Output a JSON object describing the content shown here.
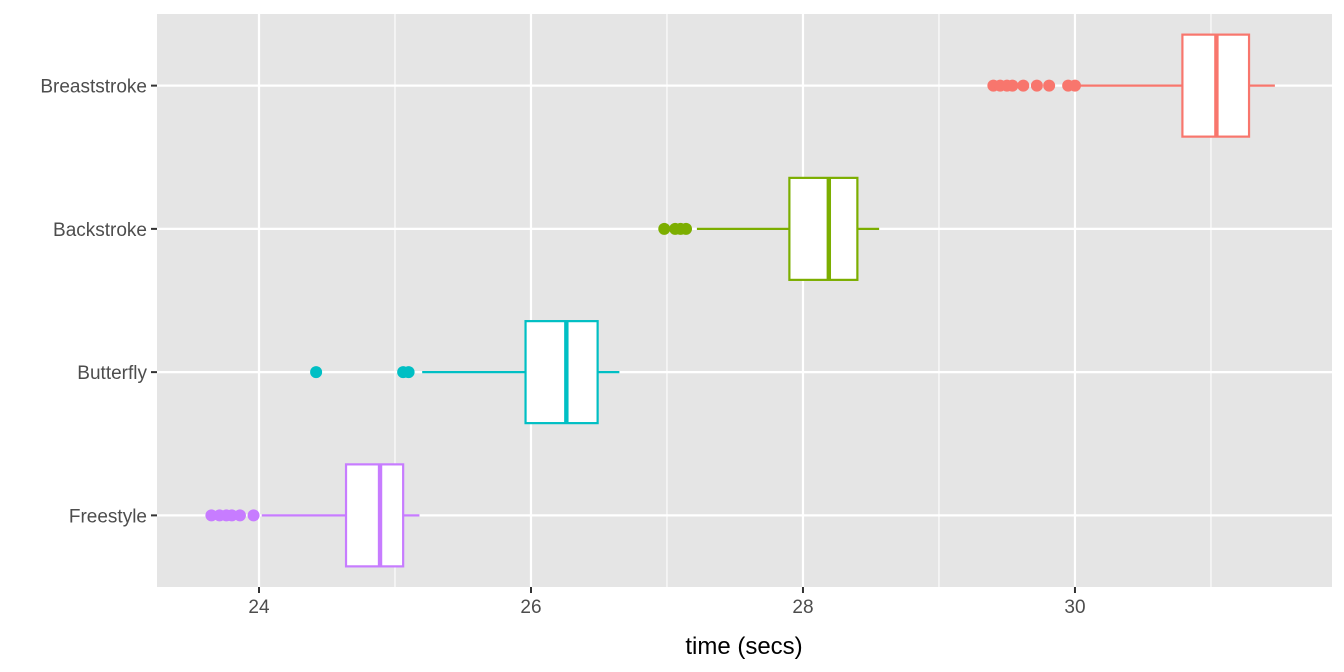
{
  "chart_data": {
    "type": "boxplot",
    "orientation": "horizontal",
    "title": "",
    "xlabel": "time (secs)",
    "ylabel": "",
    "xlim": [
      23.25,
      31.89
    ],
    "x_ticks": [
      24,
      26,
      28,
      30
    ],
    "x_minor_ticks": [
      25,
      27,
      29,
      31
    ],
    "grid": true,
    "legend": "none",
    "background": "#E5E5E5",
    "categories": [
      "Breaststroke",
      "Backstroke",
      "Butterfly",
      "Freestyle"
    ],
    "series": [
      {
        "category": "Breaststroke",
        "color": "#F8766D",
        "whisker_low": 30.04,
        "q1": 30.79,
        "median": 31.04,
        "q3": 31.28,
        "whisker_high": 31.47,
        "outliers": [
          29.4,
          29.45,
          29.5,
          29.54,
          29.62,
          29.72,
          29.81,
          29.95,
          30.0
        ]
      },
      {
        "category": "Backstroke",
        "color": "#7CAE00",
        "whisker_low": 27.22,
        "q1": 27.9,
        "median": 28.19,
        "q3": 28.4,
        "whisker_high": 28.56,
        "outliers": [
          26.98,
          27.06,
          27.1,
          27.14
        ]
      },
      {
        "category": "Butterfly",
        "color": "#00BFC4",
        "whisker_low": 25.2,
        "q1": 25.96,
        "median": 26.26,
        "q3": 26.49,
        "whisker_high": 26.65,
        "outliers": [
          24.42,
          25.06,
          25.1
        ]
      },
      {
        "category": "Freestyle",
        "color": "#C77CFF",
        "whisker_low": 24.02,
        "q1": 24.64,
        "median": 24.89,
        "q3": 25.06,
        "whisker_high": 25.18,
        "outliers": [
          23.65,
          23.71,
          23.76,
          23.8,
          23.86,
          23.96
        ]
      }
    ]
  }
}
